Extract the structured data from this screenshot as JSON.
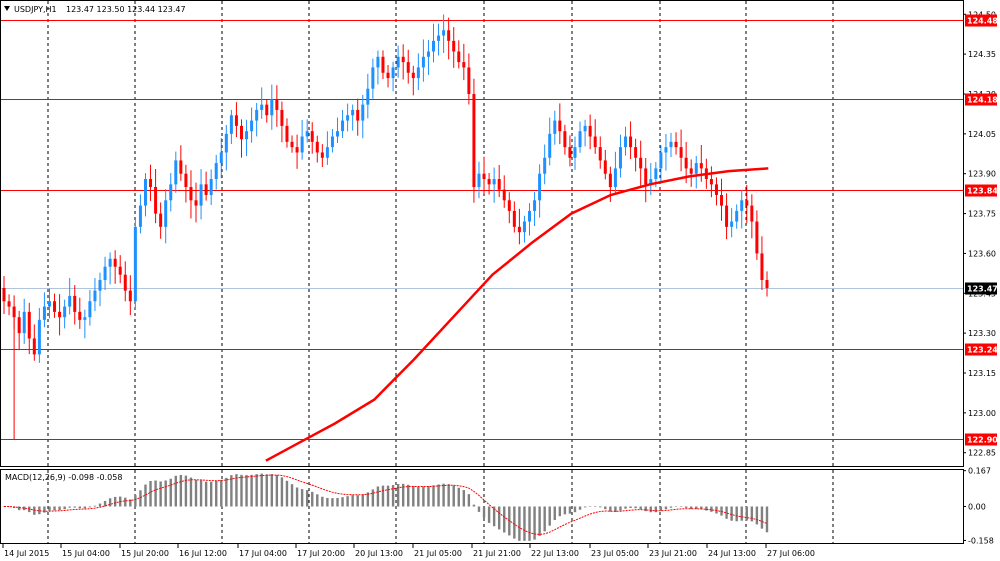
{
  "header": {
    "symbol_timeframe": "USDJPY,H1",
    "ohlc": "123.47 123.50 123.44 123.47",
    "arrow_icon": "triangle-down-icon"
  },
  "macd_header": {
    "text": "MACD(12,26,9) -0.098 -0.058"
  },
  "colors": {
    "background": "#ffffff",
    "bull_candle": "#1e90ff",
    "bear_candle": "#ff0000",
    "hline": "#ff0000",
    "ma_line": "#ff0000",
    "current_price_line": "#b0c4de",
    "grid": "#000000",
    "macd_bar": "#808080",
    "macd_signal": "#ff0000",
    "price_label_bg": "#ff0000",
    "current_label_bg": "#000000"
  },
  "price_axis": {
    "ticks": [
      "124.50",
      "124.35",
      "124.20",
      "124.05",
      "123.90",
      "123.75",
      "123.60",
      "123.45",
      "123.30",
      "123.15",
      "123.00",
      "122.85"
    ],
    "tick_values": [
      124.5,
      124.35,
      124.2,
      124.05,
      123.9,
      123.75,
      123.6,
      123.45,
      123.3,
      123.15,
      123.0,
      122.85
    ],
    "range": [
      122.8,
      124.55
    ]
  },
  "horizontal_lines": [
    {
      "value": 124.48,
      "label": "124.48"
    },
    {
      "value": 124.18,
      "label": "124.18"
    },
    {
      "value": 123.84,
      "label": "123.84"
    },
    {
      "value": 123.24,
      "label": "123.24"
    },
    {
      "value": 122.9,
      "label": "122.90"
    }
  ],
  "current_price": {
    "value": 123.47,
    "label": "123.47"
  },
  "macd_axis": {
    "ticks": [
      "0.167",
      "0.00",
      "-0.158"
    ],
    "tick_values": [
      0.167,
      0.0,
      -0.158
    ],
    "range": [
      -0.17,
      0.17
    ]
  },
  "time_axis": {
    "labels": [
      "14 Jul 2015",
      "15 Jul 04:00",
      "15 Jul 20:00",
      "16 Jul 12:00",
      "17 Jul 04:00",
      "17 Jul 20:00",
      "20 Jul 13:00",
      "21 Jul 05:00",
      "21 Jul 21:00",
      "22 Jul 13:00",
      "23 Jul 05:00",
      "23 Jul 21:00",
      "24 Jul 13:00",
      "27 Jul 06:00"
    ]
  },
  "chart_data": {
    "type": "line",
    "title": "USDJPY,H1",
    "description_series": [
      {
        "name": "close",
        "values": [
          123.42,
          123.4,
          123.36,
          123.3,
          123.38,
          123.28,
          123.22,
          123.35,
          123.4,
          123.42,
          123.38,
          123.36,
          123.4,
          123.44,
          123.38,
          123.35,
          123.36,
          123.42,
          123.46,
          123.5,
          123.55,
          123.58,
          123.55,
          123.52,
          123.46,
          123.42,
          123.7,
          123.78,
          123.88,
          123.85,
          123.75,
          123.7,
          123.8,
          123.86,
          123.95,
          123.9,
          123.85,
          123.8,
          123.78,
          123.86,
          123.82,
          123.88,
          123.94,
          123.98,
          124.05,
          124.12,
          124.08,
          124.03,
          124.06,
          124.1,
          124.14,
          124.16,
          124.12,
          124.18,
          124.14,
          124.08,
          124.02,
          124.0,
          123.98,
          124.04,
          124.06,
          124.02,
          123.98,
          123.96,
          124.0,
          124.04,
          124.06,
          124.1,
          124.12,
          124.14,
          124.1,
          124.16,
          124.22,
          124.3,
          124.34,
          124.28,
          124.26,
          124.3,
          124.34,
          124.32,
          124.28,
          124.26,
          124.3,
          124.34,
          124.36,
          124.4,
          124.42,
          124.44,
          124.4,
          124.36,
          124.32,
          124.3,
          124.2,
          123.85,
          123.9,
          123.88,
          123.86,
          123.88,
          123.84,
          123.8,
          123.76,
          123.7,
          123.68,
          123.72,
          123.76,
          123.8,
          123.9,
          123.96,
          124.05,
          124.1,
          124.06,
          124.0,
          123.96,
          124.0,
          124.06,
          124.08,
          124.04,
          124.0,
          123.95,
          123.9,
          123.85,
          123.92,
          124.0,
          124.04,
          124.0,
          123.96,
          123.92,
          123.86,
          123.88,
          123.92,
          123.98,
          124.0,
          124.02,
          124.0,
          123.96,
          123.92,
          123.9,
          123.94,
          123.92,
          123.88,
          123.86,
          123.82,
          123.78,
          123.7,
          123.72,
          123.76,
          123.8,
          123.78,
          123.72,
          123.6,
          123.5,
          123.47
        ]
      },
      {
        "name": "moving_average",
        "x": [
          0.27,
          0.3,
          0.34,
          0.38,
          0.42,
          0.46,
          0.5,
          0.54,
          0.58,
          0.62,
          0.66,
          0.7,
          0.74,
          0.78
        ],
        "values": [
          122.82,
          122.88,
          122.96,
          123.05,
          123.2,
          123.36,
          123.52,
          123.64,
          123.75,
          123.82,
          123.86,
          123.89,
          123.91,
          123.92
        ]
      }
    ],
    "ylim": [
      122.8,
      124.55
    ]
  }
}
